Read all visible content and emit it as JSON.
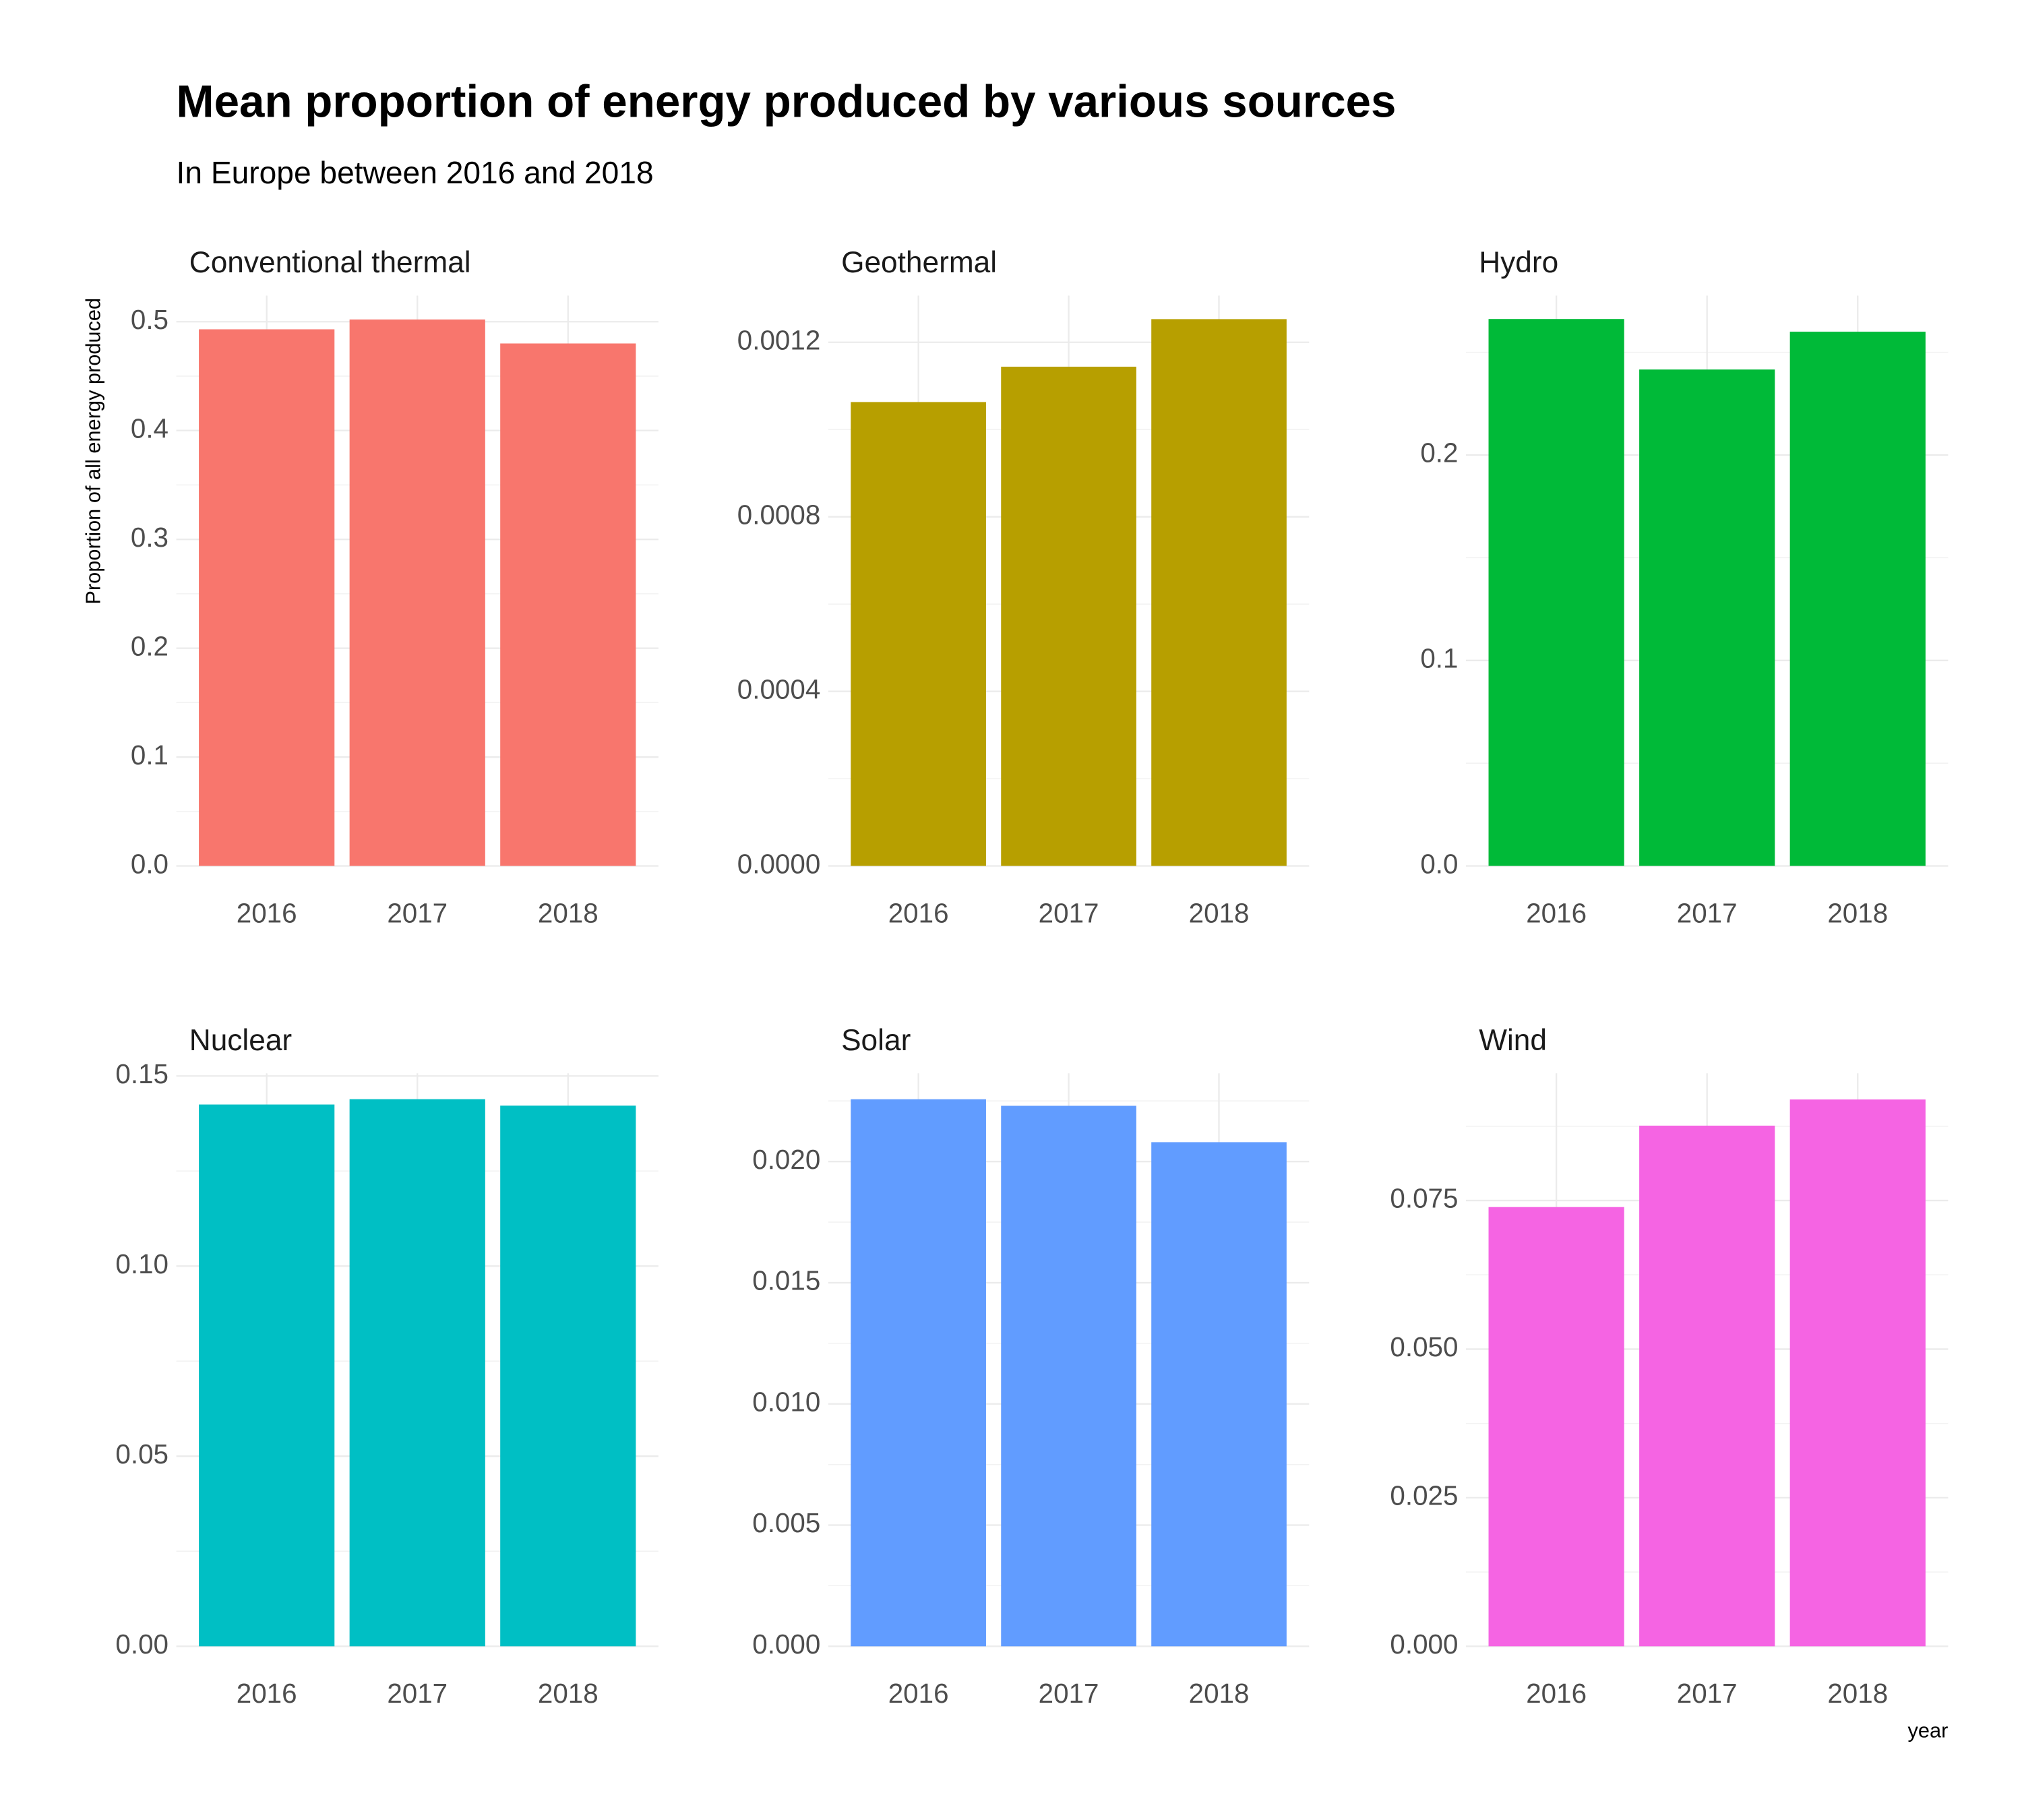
{
  "header": {
    "title": "Mean proportion of energy produced by various sources",
    "subtitle": "In Europe between 2016 and 2018"
  },
  "chart_data": [
    {
      "type": "bar",
      "title": "Conventional thermal",
      "y_label": "Proportion of all energy produced",
      "categories": [
        "2016",
        "2017",
        "2018"
      ],
      "values": [
        0.493,
        0.502,
        0.48
      ],
      "color": "#F8766D",
      "ylim": [
        0,
        0.524
      ],
      "yticks": [
        {
          "value": 0,
          "label": "0.0"
        },
        0.1,
        0.2,
        0.3,
        0.4,
        0.5
      ],
      "grid": true
    },
    {
      "type": "bar",
      "title": "Geothermal",
      "categories": [
        "2016",
        "2017",
        "2018"
      ],
      "values": [
        0.001063,
        0.001144,
        0.001253
      ],
      "color": "#B79F00",
      "ylim": [
        0,
        0.001307
      ],
      "yticks": [
        {
          "value": 0,
          "label": "0.0000"
        },
        0.0004,
        0.0008,
        0.0012
      ],
      "grid": true
    },
    {
      "type": "bar",
      "title": "Hydro",
      "categories": [
        "2016",
        "2017",
        "2018"
      ],
      "values": [
        0.2662,
        0.2416,
        0.26
      ],
      "color": "#00BA38",
      "ylim": [
        0,
        0.2776
      ],
      "yticks": [
        {
          "value": 0,
          "label": "0.0"
        },
        0.1,
        0.2
      ],
      "grid": true
    },
    {
      "type": "bar",
      "title": "Nuclear",
      "categories": [
        "2016",
        "2017",
        "2018"
      ],
      "values": [
        0.1425,
        0.1439,
        0.1422
      ],
      "color": "#00BFC4",
      "ylim": [
        0,
        0.1507
      ],
      "yticks": [
        {
          "value": 0,
          "label": "0.00"
        },
        0.05,
        {
          "value": 0.1,
          "label": "0.10"
        },
        0.15
      ],
      "grid": true
    },
    {
      "type": "bar",
      "title": "Solar",
      "categories": [
        "2016",
        "2017",
        "2018"
      ],
      "values": [
        0.02257,
        0.0223,
        0.0208
      ],
      "color": "#619CFF",
      "ylim": [
        0,
        0.02364
      ],
      "yticks": [
        {
          "value": 0,
          "label": "0.000"
        },
        0.005,
        {
          "value": 0.01,
          "label": "0.010"
        },
        0.015,
        {
          "value": 0.02,
          "label": "0.020"
        }
      ],
      "grid": true
    },
    {
      "type": "bar",
      "title": "Wind",
      "x_label": "year",
      "categories": [
        "2016",
        "2017",
        "2018"
      ],
      "values": [
        0.0739,
        0.0876,
        0.092
      ],
      "color": "#F564E3",
      "ylim": [
        0,
        0.0964
      ],
      "yticks": [
        {
          "value": 0,
          "label": "0.000"
        },
        0.025,
        {
          "value": 0.05,
          "label": "0.050"
        },
        0.075
      ],
      "grid": true
    }
  ]
}
